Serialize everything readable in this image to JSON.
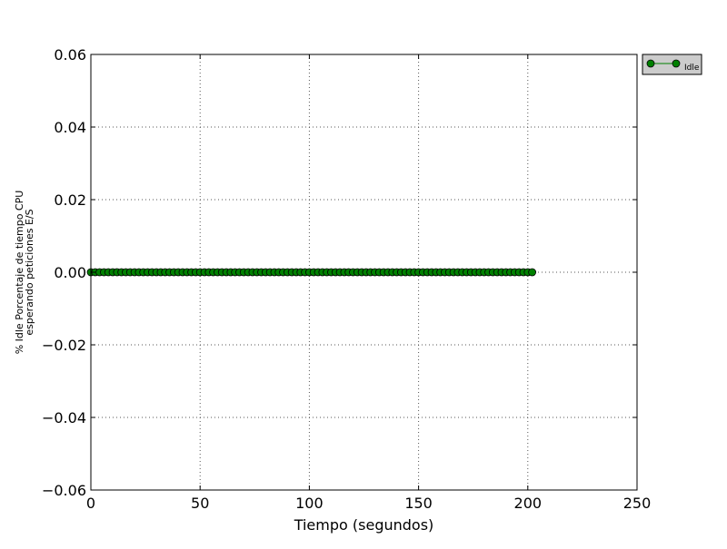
{
  "chart_data": {
    "type": "line",
    "title": "",
    "xlabel": "Tiempo (segundos)",
    "ylabel_lines": [
      "% Idle Porcentaje de tiempo CPU",
      "esperando peticiones E/S"
    ],
    "xlim": [
      0,
      250
    ],
    "ylim": [
      -0.06,
      0.06
    ],
    "x_ticks": [
      0,
      50,
      100,
      150,
      200,
      250
    ],
    "x_tick_labels": [
      "0",
      "50",
      "100",
      "150",
      "200",
      "250"
    ],
    "y_ticks": [
      -0.06,
      -0.04,
      -0.02,
      0.0,
      0.02,
      0.04,
      0.06
    ],
    "y_tick_labels": [
      "−0.06",
      "−0.04",
      "−0.02",
      "0.00",
      "0.02",
      "0.04",
      "0.06"
    ],
    "grid": true,
    "legend_position": "outside-top-right",
    "colors": {
      "series": "#008000",
      "marker_edge": "#000000",
      "legend_bg": "#cccccc",
      "grid": "#555555"
    },
    "series": [
      {
        "name": "Idle",
        "x_start": 0,
        "x_end": 202,
        "x_step": 2,
        "y_constant": 0.0
      }
    ]
  }
}
